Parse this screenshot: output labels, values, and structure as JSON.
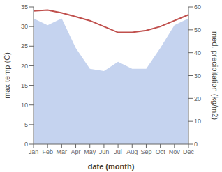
{
  "chart_data": {
    "type": "line",
    "categories": [
      "Jan",
      "Feb",
      "Mar",
      "Apr",
      "May",
      "Jun",
      "Jul",
      "Aug",
      "Sep",
      "Oct",
      "Nov",
      "Dec"
    ],
    "series": [
      {
        "type": "area",
        "color": "#c5d3ef",
        "axis": "y2",
        "values": [
          55,
          52,
          55,
          42,
          33,
          32,
          36,
          33,
          33,
          42,
          52,
          55
        ]
      },
      {
        "type": "line",
        "color": "#c0504d",
        "values": [
          34.0,
          34.2,
          33.5,
          32.5,
          31.5,
          30.0,
          28.5,
          28.5,
          29.0,
          30.0,
          31.5,
          33.0
        ]
      }
    ],
    "xlabel": "date (month)",
    "ylabel": "max temp (C)",
    "y2label": "med. precipitation (kg/m2)",
    "ylim": [
      0,
      35
    ],
    "yticks": [
      0,
      5,
      10,
      15,
      20,
      25,
      30,
      35
    ],
    "y2lim": [
      0,
      60
    ],
    "y2ticks": [
      0,
      10,
      20,
      30,
      40,
      50,
      60
    ],
    "grid": false
  }
}
